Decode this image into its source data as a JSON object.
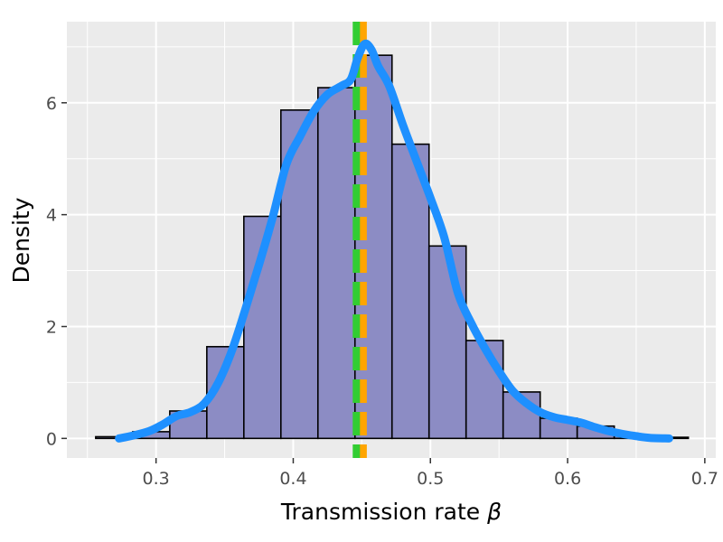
{
  "chart_data": {
    "type": "histogram",
    "xlabel": "Transmission rate",
    "xlabel_symbol": "β",
    "ylabel": "Density",
    "x_ticks": [
      0.3,
      0.4,
      0.5,
      0.6,
      0.7
    ],
    "x_tick_labels": [
      "0.3",
      "0.4",
      "0.5",
      "0.6",
      "0.7"
    ],
    "y_ticks": [
      0,
      2,
      4,
      6
    ],
    "y_tick_labels": [
      "0",
      "2",
      "4",
      "6"
    ],
    "xlim": [
      0.235,
      0.708
    ],
    "ylim": [
      -0.35,
      7.45
    ],
    "grid": true,
    "bars": {
      "bin_width": 0.027,
      "fill": "#8c8cc4",
      "stroke": "#000000",
      "bins": [
        {
          "x0": 0.256,
          "x1": 0.283,
          "density": 0.03
        },
        {
          "x0": 0.283,
          "x1": 0.31,
          "density": 0.12
        },
        {
          "x0": 0.31,
          "x1": 0.337,
          "density": 0.49
        },
        {
          "x0": 0.337,
          "x1": 0.364,
          "density": 1.64
        },
        {
          "x0": 0.364,
          "x1": 0.391,
          "density": 3.97
        },
        {
          "x0": 0.391,
          "x1": 0.418,
          "density": 5.87
        },
        {
          "x0": 0.418,
          "x1": 0.445,
          "density": 6.27
        },
        {
          "x0": 0.445,
          "x1": 0.472,
          "density": 6.85
        },
        {
          "x0": 0.472,
          "x1": 0.499,
          "density": 5.26
        },
        {
          "x0": 0.499,
          "x1": 0.526,
          "density": 3.44
        },
        {
          "x0": 0.526,
          "x1": 0.553,
          "density": 1.75
        },
        {
          "x0": 0.553,
          "x1": 0.58,
          "density": 0.83
        },
        {
          "x0": 0.58,
          "x1": 0.607,
          "density": 0.36
        },
        {
          "x0": 0.607,
          "x1": 0.634,
          "density": 0.22
        },
        {
          "x0": 0.634,
          "x1": 0.661,
          "density": 0.05
        },
        {
          "x0": 0.661,
          "x1": 0.688,
          "density": 0.02
        }
      ]
    },
    "density_curve": {
      "color": "#1e90ff",
      "points": [
        [
          0.273,
          0.0
        ],
        [
          0.283,
          0.05
        ],
        [
          0.295,
          0.13
        ],
        [
          0.305,
          0.25
        ],
        [
          0.315,
          0.4
        ],
        [
          0.325,
          0.47
        ],
        [
          0.335,
          0.62
        ],
        [
          0.345,
          0.98
        ],
        [
          0.355,
          1.55
        ],
        [
          0.365,
          2.3
        ],
        [
          0.375,
          3.1
        ],
        [
          0.385,
          3.95
        ],
        [
          0.395,
          4.9
        ],
        [
          0.405,
          5.4
        ],
        [
          0.415,
          5.85
        ],
        [
          0.425,
          6.15
        ],
        [
          0.435,
          6.3
        ],
        [
          0.442,
          6.42
        ],
        [
          0.447,
          6.8
        ],
        [
          0.452,
          7.05
        ],
        [
          0.457,
          6.95
        ],
        [
          0.462,
          6.65
        ],
        [
          0.47,
          6.3
        ],
        [
          0.48,
          5.6
        ],
        [
          0.49,
          4.95
        ],
        [
          0.5,
          4.3
        ],
        [
          0.51,
          3.6
        ],
        [
          0.52,
          2.6
        ],
        [
          0.53,
          2.05
        ],
        [
          0.54,
          1.6
        ],
        [
          0.55,
          1.2
        ],
        [
          0.56,
          0.85
        ],
        [
          0.57,
          0.63
        ],
        [
          0.58,
          0.47
        ],
        [
          0.59,
          0.38
        ],
        [
          0.6,
          0.33
        ],
        [
          0.61,
          0.28
        ],
        [
          0.62,
          0.2
        ],
        [
          0.63,
          0.13
        ],
        [
          0.64,
          0.08
        ],
        [
          0.65,
          0.04
        ],
        [
          0.66,
          0.01
        ],
        [
          0.674,
          0.0
        ]
      ]
    },
    "reference_lines": [
      {
        "x": 0.451,
        "color": "#ffa500",
        "style": "dashed"
      },
      {
        "x": 0.446,
        "color": "#32cd32",
        "style": "dashed"
      }
    ],
    "colors": {
      "panel_background": "#ebebeb",
      "grid": "#ffffff",
      "tick_label": "#4d4d4d",
      "axis_title": "#000000"
    }
  }
}
